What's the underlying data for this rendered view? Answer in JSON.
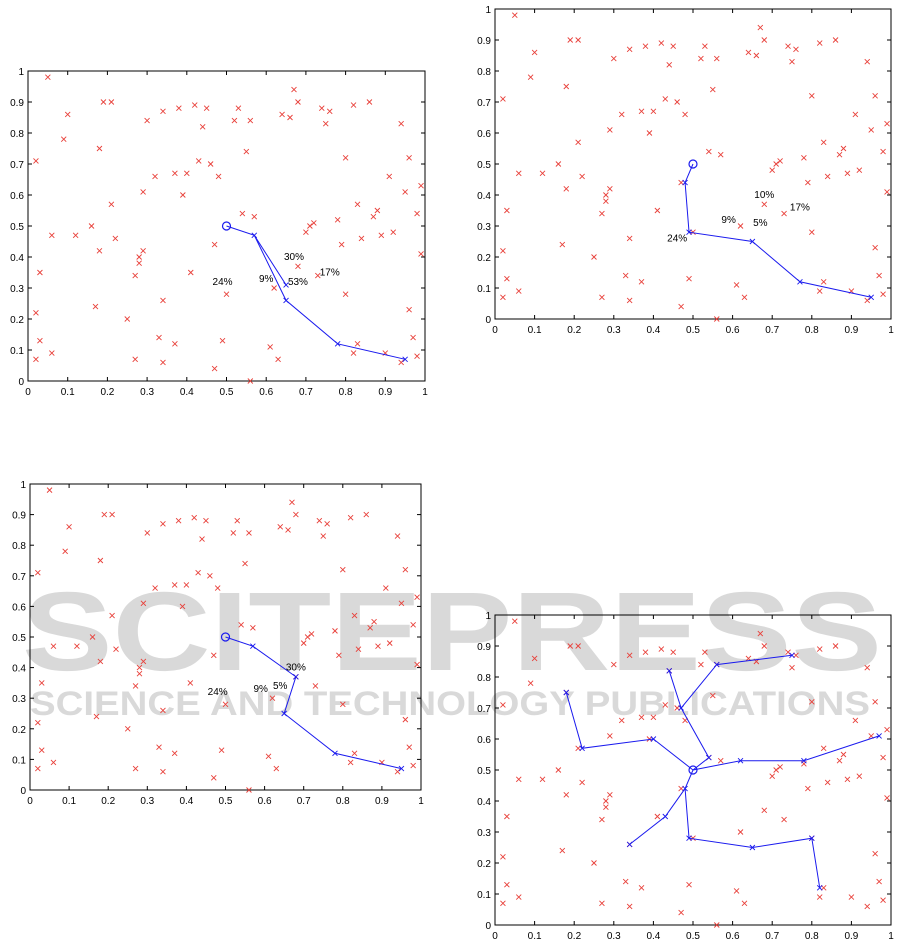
{
  "watermark": {
    "title": "SCITEPRESS",
    "subtitle": "SCIENCE AND TECHNOLOGY PUBLICATIONS",
    "color": "#d9d9d9"
  },
  "colors": {
    "points": "#e8403a",
    "path": "#1a1aee",
    "axis": "#000000"
  },
  "scatter": [
    [
      0.02,
      0.71
    ],
    [
      0.05,
      0.98
    ],
    [
      0.03,
      0.35
    ],
    [
      0.02,
      0.22
    ],
    [
      0.03,
      0.13
    ],
    [
      0.06,
      0.47
    ],
    [
      0.02,
      0.07
    ],
    [
      0.06,
      0.09
    ],
    [
      0.09,
      0.78
    ],
    [
      0.1,
      0.86
    ],
    [
      0.12,
      0.47
    ],
    [
      0.16,
      0.5
    ],
    [
      0.17,
      0.24
    ],
    [
      0.18,
      0.42
    ],
    [
      0.18,
      0.75
    ],
    [
      0.19,
      0.9
    ],
    [
      0.21,
      0.9
    ],
    [
      0.21,
      0.57
    ],
    [
      0.22,
      0.46
    ],
    [
      0.25,
      0.2
    ],
    [
      0.27,
      0.34
    ],
    [
      0.27,
      0.07
    ],
    [
      0.28,
      0.38
    ],
    [
      0.28,
      0.4
    ],
    [
      0.29,
      0.42
    ],
    [
      0.29,
      0.61
    ],
    [
      0.3,
      0.84
    ],
    [
      0.32,
      0.66
    ],
    [
      0.34,
      0.87
    ],
    [
      0.34,
      0.26
    ],
    [
      0.34,
      0.06
    ],
    [
      0.33,
      0.14
    ],
    [
      0.37,
      0.67
    ],
    [
      0.37,
      0.12
    ],
    [
      0.38,
      0.88
    ],
    [
      0.39,
      0.6
    ],
    [
      0.4,
      0.67
    ],
    [
      0.41,
      0.35
    ],
    [
      0.42,
      0.89
    ],
    [
      0.43,
      0.71
    ],
    [
      0.44,
      0.82
    ],
    [
      0.45,
      0.88
    ],
    [
      0.46,
      0.7
    ],
    [
      0.47,
      0.44
    ],
    [
      0.47,
      0.04
    ],
    [
      0.48,
      0.66
    ],
    [
      0.49,
      0.13
    ],
    [
      0.5,
      0.28
    ],
    [
      0.52,
      0.84
    ],
    [
      0.53,
      0.88
    ],
    [
      0.54,
      0.54
    ],
    [
      0.55,
      0.74
    ],
    [
      0.56,
      0.84
    ],
    [
      0.57,
      0.53
    ],
    [
      0.56,
      0.0
    ],
    [
      0.61,
      0.11
    ],
    [
      0.62,
      0.3
    ],
    [
      0.63,
      0.07
    ],
    [
      0.64,
      0.86
    ],
    [
      0.66,
      0.85
    ],
    [
      0.67,
      0.94
    ],
    [
      0.68,
      0.37
    ],
    [
      0.68,
      0.9
    ],
    [
      0.7,
      0.48
    ],
    [
      0.71,
      0.5
    ],
    [
      0.72,
      0.51
    ],
    [
      0.73,
      0.34
    ],
    [
      0.74,
      0.88
    ],
    [
      0.75,
      0.83
    ],
    [
      0.76,
      0.87
    ],
    [
      0.78,
      0.52
    ],
    [
      0.79,
      0.44
    ],
    [
      0.8,
      0.72
    ],
    [
      0.8,
      0.28
    ],
    [
      0.82,
      0.89
    ],
    [
      0.82,
      0.09
    ],
    [
      0.83,
      0.57
    ],
    [
      0.83,
      0.12
    ],
    [
      0.84,
      0.46
    ],
    [
      0.86,
      0.9
    ],
    [
      0.87,
      0.53
    ],
    [
      0.88,
      0.55
    ],
    [
      0.89,
      0.47
    ],
    [
      0.9,
      0.09
    ],
    [
      0.91,
      0.66
    ],
    [
      0.92,
      0.48
    ],
    [
      0.94,
      0.83
    ],
    [
      0.95,
      0.61
    ],
    [
      0.96,
      0.72
    ],
    [
      0.96,
      0.23
    ],
    [
      0.97,
      0.14
    ],
    [
      0.98,
      0.54
    ],
    [
      0.98,
      0.08
    ],
    [
      0.99,
      0.63
    ],
    [
      0.99,
      0.41
    ],
    [
      0.94,
      0.06
    ]
  ],
  "main_path": [
    [
      0.5,
      0.5
    ],
    [
      0.57,
      0.47
    ],
    [
      0.65,
      0.26
    ],
    [
      0.78,
      0.12
    ],
    [
      0.95,
      0.07
    ]
  ],
  "chart_data": [
    {
      "type": "scatter",
      "title": "",
      "xlabel": "",
      "ylabel": "",
      "xlim": [
        0,
        1
      ],
      "ylim": [
        0,
        1
      ],
      "xticks": [
        "0",
        "0.1",
        "0.2",
        "0.3",
        "0.4",
        "0.5",
        "0.6",
        "0.7",
        "0.8",
        "0.9",
        "1"
      ],
      "yticks": [
        "0",
        "0.1",
        "0.2",
        "0.3",
        "0.4",
        "0.5",
        "0.6",
        "0.7",
        "0.8",
        "0.9",
        "1"
      ],
      "grid": false,
      "extra_path": [
        [
          0.57,
          0.47
        ],
        [
          0.65,
          0.31
        ]
      ],
      "annotations": [
        {
          "text": "24%",
          "x": 0.49,
          "y": 0.31
        },
        {
          "text": "9%",
          "x": 0.6,
          "y": 0.32
        },
        {
          "text": "30%",
          "x": 0.67,
          "y": 0.39
        },
        {
          "text": "53%",
          "x": 0.68,
          "y": 0.31
        },
        {
          "text": "17%",
          "x": 0.76,
          "y": 0.34
        }
      ]
    },
    {
      "type": "scatter",
      "title": "",
      "xlabel": "",
      "ylabel": "",
      "xlim": [
        0,
        1
      ],
      "ylim": [
        0,
        1
      ],
      "xticks": [
        "0",
        "0.1",
        "0.2",
        "0.3",
        "0.4",
        "0.5",
        "0.6",
        "0.7",
        "0.8",
        "0.9",
        "1"
      ],
      "yticks": [
        "0",
        "0.1",
        "0.2",
        "0.3",
        "0.4",
        "0.5",
        "0.6",
        "0.7",
        "0.8",
        "0.9",
        "1"
      ],
      "grid": false,
      "start": [
        0.5,
        0.5
      ],
      "path": [
        [
          0.5,
          0.5
        ],
        [
          0.48,
          0.44
        ],
        [
          0.49,
          0.28
        ],
        [
          0.65,
          0.25
        ],
        [
          0.77,
          0.12
        ],
        [
          0.95,
          0.07
        ]
      ],
      "annotations": [
        {
          "text": "24%",
          "x": 0.46,
          "y": 0.25
        },
        {
          "text": "9%",
          "x": 0.59,
          "y": 0.31
        },
        {
          "text": "5%",
          "x": 0.67,
          "y": 0.3
        },
        {
          "text": "10%",
          "x": 0.68,
          "y": 0.39
        },
        {
          "text": "17%",
          "x": 0.77,
          "y": 0.35
        }
      ]
    },
    {
      "type": "scatter",
      "title": "",
      "xlabel": "",
      "ylabel": "",
      "xlim": [
        0,
        1
      ],
      "ylim": [
        0,
        1
      ],
      "xticks": [
        "0",
        "0.1",
        "0.2",
        "0.3",
        "0.4",
        "0.5",
        "0.6",
        "0.7",
        "0.8",
        "0.9",
        "1"
      ],
      "yticks": [
        "0",
        "0.1",
        "0.2",
        "0.3",
        "0.4",
        "0.5",
        "0.6",
        "0.7",
        "0.8",
        "0.9",
        "1"
      ],
      "grid": false,
      "start": [
        0.5,
        0.5
      ],
      "path": [
        [
          0.5,
          0.5
        ],
        [
          0.57,
          0.47
        ],
        [
          0.68,
          0.37
        ],
        [
          0.65,
          0.25
        ],
        [
          0.78,
          0.12
        ],
        [
          0.95,
          0.07
        ]
      ],
      "annotations": [
        {
          "text": "24%",
          "x": 0.48,
          "y": 0.31
        },
        {
          "text": "9%",
          "x": 0.59,
          "y": 0.32
        },
        {
          "text": "5%",
          "x": 0.64,
          "y": 0.33
        },
        {
          "text": "30%",
          "x": 0.68,
          "y": 0.39
        }
      ]
    },
    {
      "type": "scatter",
      "title": "",
      "xlabel": "",
      "ylabel": "",
      "xlim": [
        0,
        1
      ],
      "ylim": [
        0,
        1
      ],
      "xticks": [
        "0",
        "0.1",
        "0.2",
        "0.3",
        "0.4",
        "0.5",
        "0.6",
        "0.7",
        "0.8",
        "0.9",
        "1"
      ],
      "yticks": [
        "0",
        "0.1",
        "0.2",
        "0.3",
        "0.4",
        "0.5",
        "0.6",
        "0.7",
        "0.8",
        "0.9",
        "1"
      ],
      "grid": false,
      "start": [
        0.5,
        0.5
      ],
      "tree": [
        [
          [
            0.5,
            0.5
          ],
          [
            0.62,
            0.53
          ],
          [
            0.78,
            0.53
          ],
          [
            0.97,
            0.61
          ]
        ],
        [
          [
            0.5,
            0.5
          ],
          [
            0.54,
            0.54
          ],
          [
            0.47,
            0.7
          ],
          [
            0.56,
            0.84
          ],
          [
            0.75,
            0.87
          ]
        ],
        [
          [
            0.47,
            0.7
          ],
          [
            0.44,
            0.82
          ]
        ],
        [
          [
            0.5,
            0.5
          ],
          [
            0.4,
            0.6
          ],
          [
            0.22,
            0.57
          ],
          [
            0.18,
            0.75
          ]
        ],
        [
          [
            0.5,
            0.5
          ],
          [
            0.48,
            0.44
          ],
          [
            0.43,
            0.35
          ],
          [
            0.34,
            0.26
          ]
        ],
        [
          [
            0.48,
            0.44
          ],
          [
            0.49,
            0.28
          ],
          [
            0.65,
            0.25
          ],
          [
            0.8,
            0.28
          ],
          [
            0.82,
            0.12
          ]
        ]
      ],
      "annotations": []
    }
  ]
}
